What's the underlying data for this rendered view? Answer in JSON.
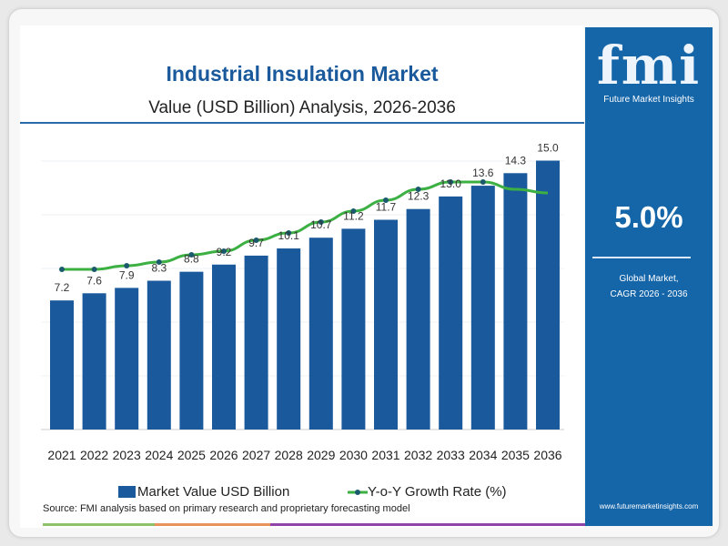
{
  "header": {
    "title": "Industrial Insulation Market",
    "subtitle": "Value (USD Billion) Analysis, 2026-2036"
  },
  "side_panel": {
    "logo_text": "fmi",
    "logo_caption": "Future Market Insights",
    "cagr_value": "5.0%",
    "cagr_label_line1": "Global Market,",
    "cagr_label_line2": "CAGR 2026 - 2036",
    "url": "www.futuremarketinsights.com",
    "background": "#1565a9"
  },
  "footer": {
    "source": "Source: FMI analysis based on primary research and proprietary forecasting model",
    "stripe_colors": [
      "#8dc26b",
      "#e8925c",
      "#8e44a8"
    ]
  },
  "chart_data": {
    "type": "bar",
    "categories": [
      "2021",
      "2022",
      "2023",
      "2024",
      "2025",
      "2026",
      "2027",
      "2028",
      "2029",
      "2030",
      "2031",
      "2032",
      "2033",
      "2034",
      "2035",
      "2036"
    ],
    "series": [
      {
        "name": "Market Value USD Billion",
        "type": "bar",
        "color": "#1a5a9c",
        "values": [
          7.2,
          7.6,
          7.9,
          8.3,
          8.8,
          9.2,
          9.7,
          10.1,
          10.7,
          11.2,
          11.7,
          12.3,
          13.0,
          13.6,
          14.3,
          15.0
        ],
        "labels": [
          "7.2",
          "7.6",
          "7.9",
          "8.3",
          "8.8",
          "9.2",
          "9.7",
          "10.1",
          "10.7",
          "11.2",
          "11.7",
          "12.3",
          "13.0",
          "13.6",
          "14.3",
          "15.0"
        ]
      },
      {
        "name": "Y-o-Y Growth Rate (%)",
        "type": "line",
        "color": "#3cb043",
        "values": [
          4.4,
          4.4,
          4.5,
          4.6,
          4.8,
          4.9,
          5.2,
          5.4,
          5.7,
          6.0,
          6.3,
          6.6,
          6.8,
          6.8,
          6.6,
          6.5
        ]
      }
    ],
    "ylim": [
      0,
      15
    ],
    "grid": true,
    "legend": "bottom"
  }
}
